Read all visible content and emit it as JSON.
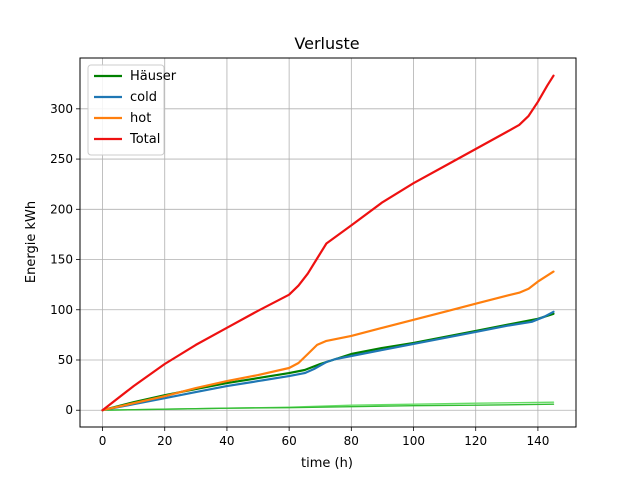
{
  "chart_data": {
    "type": "line",
    "title": "Verluste",
    "xlabel": "time (h)",
    "ylabel": "Energie kWh",
    "xlim": [
      -7.25,
      152.25
    ],
    "ylim": [
      -16.7,
      350.6
    ],
    "xticks": [
      0,
      20,
      40,
      60,
      80,
      100,
      120,
      140
    ],
    "yticks": [
      0,
      50,
      100,
      150,
      200,
      250,
      300
    ],
    "grid": true,
    "legend_position": "top-left",
    "series": [
      {
        "name": "Häuser",
        "color": "#008000",
        "in_legend": true,
        "x": [
          0,
          10,
          20,
          30,
          40,
          50,
          60,
          65,
          70,
          75,
          80,
          90,
          100,
          110,
          120,
          130,
          140,
          145
        ],
        "y": [
          0,
          8,
          15,
          21,
          27,
          32,
          37,
          40,
          46,
          51,
          56,
          62,
          67,
          73,
          79,
          85,
          91,
          96
        ]
      },
      {
        "name": "cold",
        "color": "#1f77b4",
        "in_legend": true,
        "x": [
          0,
          10,
          20,
          30,
          40,
          50,
          60,
          65,
          68,
          72,
          75,
          80,
          90,
          100,
          110,
          120,
          130,
          138,
          142,
          145
        ],
        "y": [
          0,
          6,
          12,
          18,
          24,
          29,
          34,
          37,
          41,
          48,
          51,
          54,
          60,
          66,
          72,
          78,
          84,
          88,
          93,
          98
        ]
      },
      {
        "name": "hot",
        "color": "#ff7f0e",
        "in_legend": true,
        "x": [
          0,
          10,
          20,
          30,
          40,
          50,
          60,
          63,
          66,
          69,
          72,
          80,
          90,
          100,
          110,
          120,
          130,
          134,
          137,
          140,
          145
        ],
        "y": [
          0,
          7,
          14,
          22,
          29,
          35,
          42,
          47,
          56,
          65,
          69,
          74,
          82,
          90,
          98,
          106,
          114,
          117,
          121,
          128,
          138
        ]
      },
      {
        "name": "Total",
        "color": "#ee1111",
        "in_legend": true,
        "x": [
          0,
          10,
          20,
          30,
          40,
          50,
          60,
          63,
          66,
          69,
          72,
          80,
          90,
          100,
          110,
          120,
          130,
          134,
          137,
          140,
          143,
          145
        ],
        "y": [
          0,
          24,
          46,
          65,
          82,
          99,
          115,
          124,
          136,
          151,
          166,
          184,
          207,
          226,
          243,
          260,
          277,
          284,
          293,
          307,
          323,
          333
        ]
      },
      {
        "name": "",
        "color": "#66dd66",
        "in_legend": false,
        "x": [
          0,
          20,
          40,
          60,
          80,
          100,
          120,
          145
        ],
        "y": [
          0,
          1,
          2,
          3,
          5,
          6,
          7,
          8
        ]
      },
      {
        "name": "",
        "color": "#33bb33",
        "in_legend": false,
        "x": [
          0,
          20,
          40,
          60,
          80,
          100,
          120,
          145
        ],
        "y": [
          0,
          1,
          2,
          2.5,
          3.5,
          4.5,
          5,
          6
        ]
      }
    ]
  }
}
